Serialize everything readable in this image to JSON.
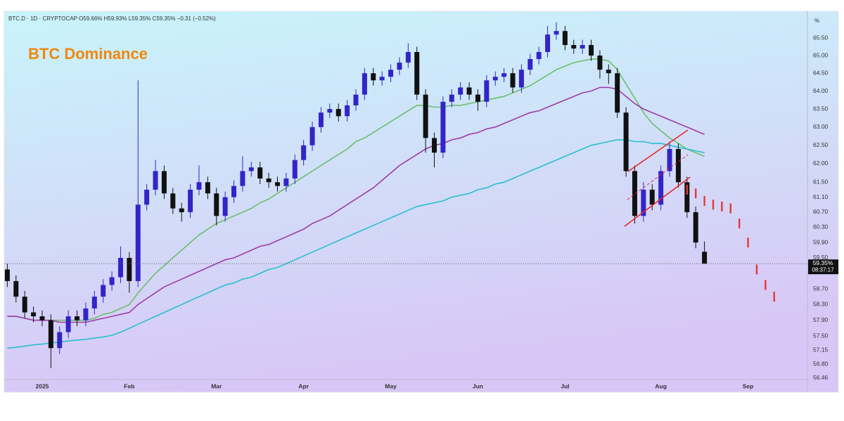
{
  "chart_data": {
    "type": "candlestick",
    "header": "BTC.D · 1D · CRYPTOCAP  O59.66% H59.93% L59.35% C59.35% −0.31 (−0.52%)",
    "title": "BTC Dominance",
    "axis_unit": "%",
    "log_scale": true,
    "categories": [
      null,
      null,
      null,
      null,
      "2025",
      null,
      null,
      null,
      null,
      null,
      null,
      null,
      null,
      null,
      "Feb",
      null,
      null,
      null,
      null,
      null,
      null,
      null,
      null,
      null,
      "Mar",
      null,
      null,
      null,
      null,
      null,
      null,
      null,
      null,
      null,
      "Apr",
      null,
      null,
      null,
      null,
      null,
      null,
      null,
      null,
      null,
      "May",
      null,
      null,
      null,
      null,
      null,
      null,
      null,
      null,
      null,
      "Jun",
      null,
      null,
      null,
      null,
      null,
      null,
      null,
      null,
      null,
      "Jul",
      null,
      null,
      null,
      null,
      null,
      null,
      null,
      null,
      null,
      null,
      "Aug",
      null,
      null,
      null,
      null,
      null,
      null,
      null,
      null,
      null,
      "Sep",
      null,
      null,
      null
    ],
    "open": [
      59.2,
      58.9,
      58.5,
      58.1,
      58.0,
      57.9,
      57.2,
      57.6,
      58.0,
      57.9,
      58.2,
      58.5,
      58.8,
      59.0,
      59.5,
      58.9,
      60.9,
      61.3,
      61.8,
      61.2,
      60.8,
      60.7,
      61.3,
      61.5,
      61.2,
      60.6,
      61.1,
      61.4,
      61.8,
      61.9,
      61.6,
      61.5,
      61.4,
      61.6,
      62.1,
      62.5,
      63.0,
      63.4,
      63.5,
      63.3,
      63.6,
      63.9,
      64.5,
      64.3,
      64.4,
      64.6,
      64.8,
      65.1,
      63.9,
      62.7,
      62.3,
      63.7,
      63.9,
      64.1,
      63.9,
      63.7,
      64.3,
      64.4,
      64.5,
      64.1,
      64.6,
      64.9,
      65.1,
      65.6,
      65.7,
      65.3,
      65.2,
      65.3,
      65.0,
      64.6,
      64.5,
      63.4,
      61.8,
      60.6,
      61.3,
      60.9,
      61.8,
      62.4,
      61.5,
      60.7,
      59.66,
      null,
      null,
      null,
      null,
      null,
      null,
      null,
      null
    ],
    "high": [
      59.35,
      59.05,
      58.65,
      58.25,
      58.15,
      58.05,
      57.75,
      58.15,
      58.15,
      58.35,
      58.65,
      58.95,
      59.15,
      59.8,
      59.65,
      64.3,
      61.45,
      62.1,
      61.95,
      61.35,
      60.95,
      61.45,
      61.95,
      61.65,
      61.35,
      61.25,
      61.55,
      62.2,
      62.05,
      62.05,
      61.75,
      61.65,
      61.75,
      62.25,
      62.65,
      63.15,
      63.55,
      63.65,
      63.65,
      63.75,
      64.05,
      64.65,
      64.65,
      64.55,
      64.75,
      64.95,
      65.35,
      65.25,
      64.05,
      62.85,
      63.85,
      64.05,
      64.25,
      64.25,
      64.05,
      64.45,
      64.55,
      64.65,
      64.65,
      64.75,
      65.05,
      65.25,
      65.85,
      65.95,
      65.85,
      65.45,
      65.45,
      65.45,
      65.15,
      64.75,
      64.65,
      63.55,
      61.95,
      61.5,
      61.45,
      61.95,
      62.6,
      62.55,
      61.65,
      60.85,
      59.93,
      null,
      null,
      null,
      null,
      null,
      null,
      null,
      null
    ],
    "low": [
      58.75,
      58.35,
      57.95,
      57.85,
      57.75,
      56.7,
      57.05,
      57.45,
      57.75,
      57.75,
      58.05,
      58.35,
      58.65,
      58.85,
      58.6,
      58.75,
      60.75,
      61.15,
      61.05,
      60.65,
      60.45,
      60.55,
      61.15,
      61.05,
      60.35,
      60.45,
      60.95,
      61.25,
      61.65,
      61.45,
      61.35,
      61.25,
      61.25,
      61.45,
      61.95,
      62.35,
      62.85,
      63.25,
      63.15,
      63.15,
      63.45,
      63.75,
      64.15,
      64.15,
      64.25,
      64.45,
      64.65,
      63.75,
      62.3,
      61.9,
      62.15,
      63.55,
      63.75,
      63.75,
      63.45,
      63.55,
      64.15,
      64.25,
      63.95,
      63.95,
      64.45,
      64.75,
      64.95,
      65.45,
      65.15,
      65.05,
      65.05,
      64.85,
      64.35,
      64.2,
      63.25,
      61.65,
      60.4,
      60.45,
      60.75,
      60.75,
      61.65,
      61.35,
      60.55,
      59.75,
      59.35,
      null,
      null,
      null,
      null,
      null,
      null,
      null,
      null
    ],
    "close": [
      58.9,
      58.5,
      58.1,
      58.0,
      57.9,
      57.2,
      57.6,
      58.0,
      57.9,
      58.2,
      58.5,
      58.8,
      59.0,
      59.5,
      58.9,
      60.9,
      61.3,
      61.8,
      61.2,
      60.8,
      60.7,
      61.3,
      61.5,
      61.2,
      60.6,
      61.1,
      61.4,
      61.8,
      61.9,
      61.6,
      61.5,
      61.4,
      61.6,
      62.1,
      62.5,
      63.0,
      63.4,
      63.5,
      63.3,
      63.6,
      63.9,
      64.5,
      64.3,
      64.4,
      64.6,
      64.8,
      65.1,
      63.9,
      62.7,
      62.3,
      63.7,
      63.9,
      64.1,
      63.9,
      63.7,
      64.3,
      64.4,
      64.5,
      64.1,
      64.6,
      64.9,
      65.1,
      65.6,
      65.7,
      65.3,
      65.2,
      65.3,
      65.0,
      64.6,
      64.5,
      63.4,
      61.8,
      60.6,
      61.3,
      60.9,
      61.8,
      62.4,
      61.5,
      60.7,
      59.9,
      59.35,
      null,
      null,
      null,
      null,
      null,
      null,
      null,
      null
    ],
    "up_color": "#3324c8",
    "down_color": "#111111",
    "moving_averages": [
      {
        "color": "#6cbf6a",
        "values": [
          58.0,
          58.0,
          57.95,
          57.9,
          57.9,
          57.9,
          57.9,
          57.9,
          57.9,
          57.9,
          57.95,
          58.05,
          58.1,
          58.2,
          58.3,
          58.6,
          58.85,
          59.1,
          59.3,
          59.5,
          59.7,
          59.9,
          60.1,
          60.25,
          60.4,
          60.5,
          60.6,
          60.7,
          60.8,
          60.95,
          61.05,
          61.2,
          61.35,
          61.5,
          61.65,
          61.8,
          61.95,
          62.1,
          62.25,
          62.4,
          62.6,
          62.7,
          62.85,
          63.0,
          63.15,
          63.3,
          63.45,
          63.6,
          63.6,
          63.55,
          63.55,
          63.6,
          63.6,
          63.65,
          63.7,
          63.75,
          63.8,
          63.85,
          63.95,
          64.05,
          64.15,
          64.3,
          64.45,
          64.6,
          64.7,
          64.8,
          64.85,
          64.9,
          64.9,
          64.85,
          64.6,
          64.2,
          63.8,
          63.4,
          63.1,
          62.9,
          62.7,
          62.55,
          62.4,
          62.3,
          62.2,
          null,
          null,
          null,
          null,
          null,
          null,
          null,
          null
        ]
      },
      {
        "color": "#a03ca8",
        "values": [
          58.0,
          58.0,
          57.95,
          57.9,
          57.9,
          57.9,
          57.85,
          57.85,
          57.85,
          57.85,
          57.9,
          57.95,
          58.0,
          58.05,
          58.1,
          58.3,
          58.45,
          58.6,
          58.75,
          58.85,
          58.95,
          59.05,
          59.15,
          59.25,
          59.35,
          59.45,
          59.5,
          59.6,
          59.7,
          59.8,
          59.85,
          59.95,
          60.05,
          60.15,
          60.25,
          60.4,
          60.5,
          60.6,
          60.75,
          60.9,
          61.05,
          61.2,
          61.35,
          61.55,
          61.75,
          61.95,
          62.1,
          62.25,
          62.4,
          62.5,
          62.55,
          62.65,
          62.7,
          62.8,
          62.85,
          62.95,
          63.0,
          63.1,
          63.2,
          63.3,
          63.4,
          63.45,
          63.55,
          63.65,
          63.75,
          63.85,
          63.95,
          64.0,
          64.1,
          64.1,
          64.05,
          63.85,
          63.65,
          63.5,
          63.4,
          63.3,
          63.2,
          63.1,
          63.0,
          62.9,
          62.8,
          null,
          null,
          null,
          null,
          null,
          null,
          null,
          null
        ]
      },
      {
        "color": "#27c0cf",
        "values": [
          57.2,
          57.22,
          57.25,
          57.28,
          57.3,
          57.33,
          57.35,
          57.38,
          57.4,
          57.42,
          57.45,
          57.48,
          57.52,
          57.6,
          57.7,
          57.8,
          57.9,
          58.0,
          58.1,
          58.2,
          58.3,
          58.4,
          58.5,
          58.6,
          58.7,
          58.8,
          58.85,
          58.95,
          59.0,
          59.1,
          59.2,
          59.25,
          59.35,
          59.45,
          59.55,
          59.65,
          59.75,
          59.85,
          59.95,
          60.05,
          60.15,
          60.25,
          60.35,
          60.45,
          60.55,
          60.65,
          60.75,
          60.85,
          60.9,
          60.95,
          61.0,
          61.1,
          61.15,
          61.2,
          61.3,
          61.35,
          61.45,
          61.5,
          61.6,
          61.7,
          61.8,
          61.9,
          62.0,
          62.1,
          62.2,
          62.3,
          62.4,
          62.5,
          62.55,
          62.6,
          62.65,
          62.65,
          62.6,
          62.6,
          62.55,
          62.55,
          62.5,
          62.45,
          62.4,
          62.35,
          62.3,
          null,
          null,
          null,
          null,
          null,
          null,
          null,
          null
        ]
      }
    ],
    "projection": {
      "color": "#e53935",
      "values": [
        null,
        null,
        null,
        null,
        null,
        null,
        null,
        null,
        null,
        null,
        null,
        null,
        null,
        null,
        null,
        null,
        null,
        null,
        null,
        null,
        null,
        null,
        null,
        null,
        null,
        null,
        null,
        null,
        null,
        null,
        null,
        null,
        null,
        null,
        null,
        null,
        null,
        null,
        null,
        null,
        null,
        null,
        null,
        null,
        null,
        null,
        null,
        null,
        null,
        null,
        null,
        null,
        null,
        null,
        null,
        null,
        null,
        null,
        null,
        null,
        null,
        null,
        null,
        null,
        null,
        null,
        null,
        null,
        null,
        null,
        null,
        null,
        null,
        null,
        null,
        null,
        null,
        null,
        61.3,
        61.2,
        61.0,
        60.9,
        60.85,
        60.8,
        60.4,
        59.9,
        59.2,
        58.8,
        58.5
      ]
    },
    "ylim": [
      56.42,
      66.23
    ],
    "yticks": [
      {
        "value": 65.5,
        "label": "65.50"
      },
      {
        "value": 65.0,
        "label": "65.00"
      },
      {
        "value": 64.5,
        "label": "64.50"
      },
      {
        "value": 64.0,
        "label": "64.00"
      },
      {
        "value": 63.5,
        "label": "63.50"
      },
      {
        "value": 63.0,
        "label": "63.00"
      },
      {
        "value": 62.5,
        "label": "62.50"
      },
      {
        "value": 62.0,
        "label": "62.00"
      },
      {
        "value": 61.5,
        "label": "61.50"
      },
      {
        "value": 61.1,
        "label": "61.10"
      },
      {
        "value": 60.7,
        "label": "60.70"
      },
      {
        "value": 60.3,
        "label": "60.30"
      },
      {
        "value": 59.9,
        "label": "59.90"
      },
      {
        "value": 59.5,
        "label": "59.50"
      },
      {
        "value": 58.7,
        "label": "58.70"
      },
      {
        "value": 58.3,
        "label": "58.30"
      },
      {
        "value": 57.9,
        "label": "57.90"
      },
      {
        "value": 57.5,
        "label": "57.50"
      },
      {
        "value": 57.15,
        "label": "57.15"
      },
      {
        "value": 56.8,
        "label": "56.80"
      },
      {
        "value": 56.46,
        "label": "56.46"
      }
    ],
    "last_price_label": "59.35%",
    "countdown": "08:37:17"
  }
}
